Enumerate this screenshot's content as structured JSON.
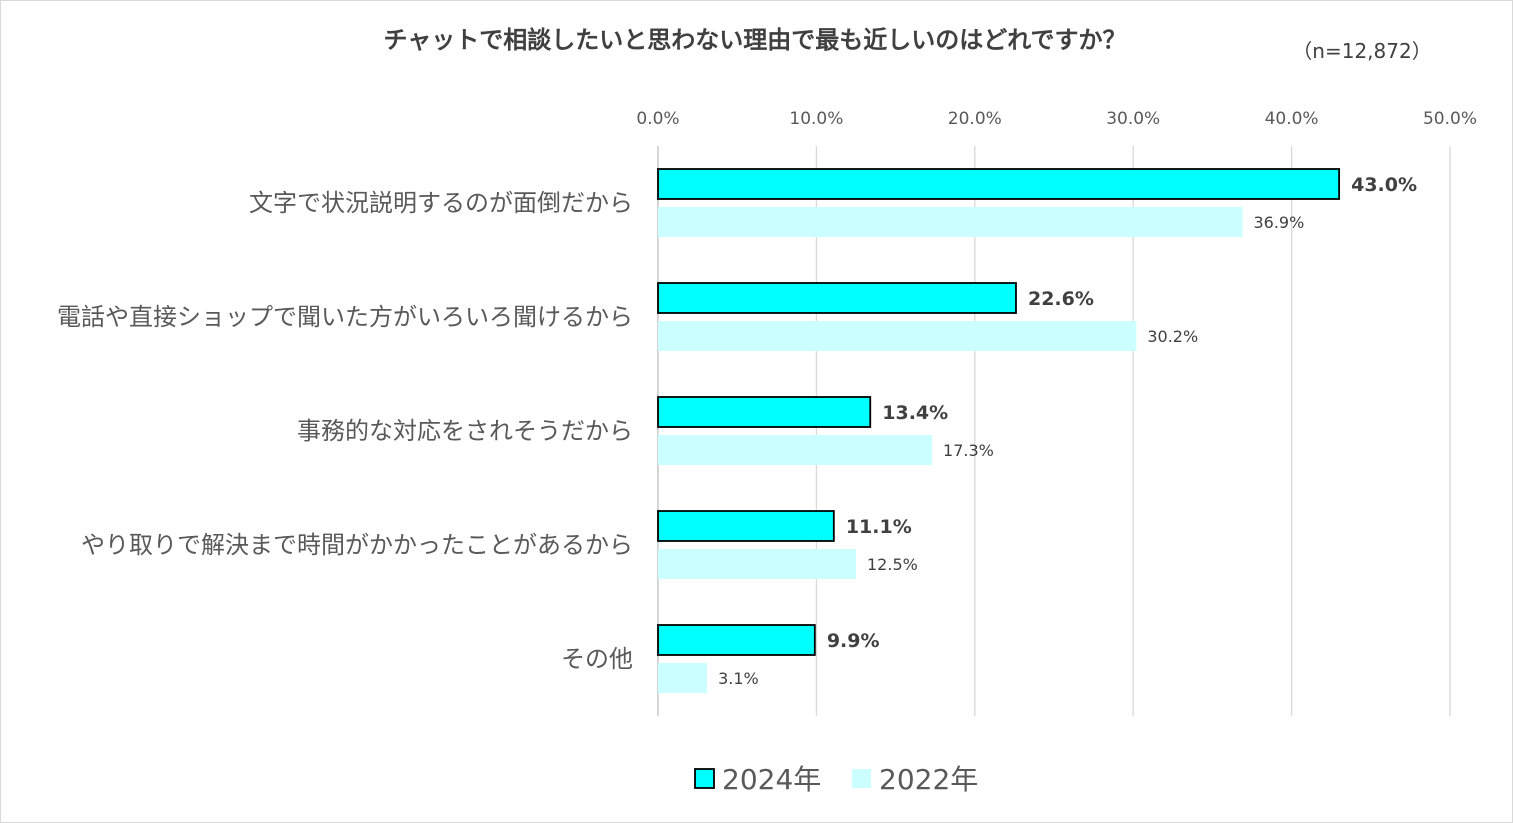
{
  "chart_data": {
    "type": "bar",
    "orientation": "horizontal",
    "title": "チャットで相談したいと思わない理由で最も近しいのはどれですか？",
    "sample_size": "（n=12,872）",
    "categories": [
      "文字で状況説明するのが面倒だから",
      "電話や直接ショップで聞いた方がいろいろ聞けるから",
      "事務的な対応をされそうだから",
      "やり取りで解決まで時間がかかったことがあるから",
      "その他"
    ],
    "series": [
      {
        "name": "2024年",
        "values": [
          43.0,
          22.6,
          13.4,
          11.1,
          9.9
        ],
        "labels": [
          "43.0%",
          "22.6%",
          "13.4%",
          "11.1%",
          "9.9%"
        ],
        "fill": "#00ffff",
        "stroke": "#000000"
      },
      {
        "name": "2022年",
        "values": [
          36.9,
          30.2,
          17.3,
          12.5,
          3.1
        ],
        "labels": [
          "36.9%",
          "30.2%",
          "17.3%",
          "12.5%",
          "3.1%"
        ],
        "fill": "#ccffff",
        "stroke": "none"
      }
    ],
    "xlim": [
      0,
      50
    ],
    "xticks": [
      "0.0%",
      "10.0%",
      "20.0%",
      "30.0%",
      "40.0%",
      "50.0%"
    ],
    "x_axis_position": "top",
    "grid": true,
    "legend_position": "bottom"
  }
}
